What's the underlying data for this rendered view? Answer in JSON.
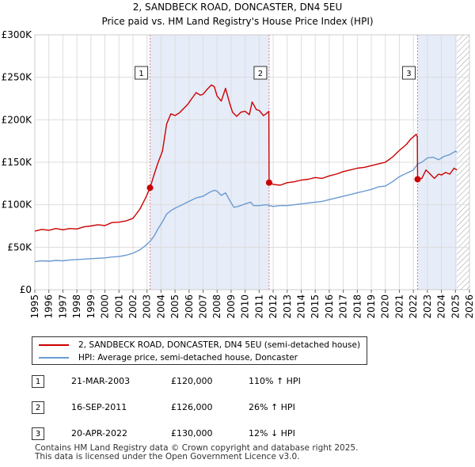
{
  "chart_data": {
    "type": "line",
    "title": "2, SANDBECK ROAD, DONCASTER, DN4 5EU",
    "subtitle": "Price paid vs. HM Land Registry's House Price Index (HPI)",
    "xlabel": "",
    "ylabel": "",
    "xlim": [
      1995,
      2026
    ],
    "ylim": [
      0,
      300000
    ],
    "y_ticks": [
      {
        "value": 0,
        "label": "£0"
      },
      {
        "value": 50000,
        "label": "£50K"
      },
      {
        "value": 100000,
        "label": "£100K"
      },
      {
        "value": 150000,
        "label": "£150K"
      },
      {
        "value": 200000,
        "label": "£200K"
      },
      {
        "value": 250000,
        "label": "£250K"
      },
      {
        "value": 300000,
        "label": "£300K"
      }
    ],
    "x_ticks": [
      "1995",
      "1996",
      "1997",
      "1998",
      "1999",
      "2000",
      "2001",
      "2002",
      "2003",
      "2004",
      "2005",
      "2006",
      "2007",
      "2008",
      "2009",
      "2010",
      "2011",
      "2012",
      "2013",
      "2014",
      "2015",
      "2016",
      "2017",
      "2018",
      "2019",
      "2020",
      "2021",
      "2022",
      "2023",
      "2024",
      "2025",
      "2026"
    ],
    "grid": true,
    "series": [
      {
        "name": "2, SANDBECK ROAD, DONCASTER, DN4 5EU (semi-detached house)",
        "color": "#cc0000",
        "points": [
          [
            1995.0,
            69000
          ],
          [
            1995.5,
            71000
          ],
          [
            1996.0,
            70000
          ],
          [
            1996.5,
            72000
          ],
          [
            1997.0,
            70500
          ],
          [
            1997.5,
            72000
          ],
          [
            1998.0,
            71500
          ],
          [
            1998.5,
            74000
          ],
          [
            1999.0,
            75000
          ],
          [
            1999.5,
            76500
          ],
          [
            2000.0,
            75500
          ],
          [
            2000.5,
            79000
          ],
          [
            2001.0,
            79500
          ],
          [
            2001.5,
            81000
          ],
          [
            2002.0,
            84000
          ],
          [
            2002.5,
            95000
          ],
          [
            2002.9,
            108000
          ],
          [
            2003.22,
            120000
          ],
          [
            2003.5,
            135000
          ],
          [
            2003.8,
            150000
          ],
          [
            2004.1,
            163000
          ],
          [
            2004.4,
            195000
          ],
          [
            2004.7,
            207000
          ],
          [
            2005.0,
            205000
          ],
          [
            2005.3,
            208000
          ],
          [
            2005.6,
            213000
          ],
          [
            2005.9,
            218000
          ],
          [
            2006.2,
            225000
          ],
          [
            2006.5,
            232000
          ],
          [
            2006.8,
            229000
          ],
          [
            2007.0,
            230000
          ],
          [
            2007.3,
            236000
          ],
          [
            2007.6,
            241000
          ],
          [
            2007.8,
            239000
          ],
          [
            2008.0,
            228000
          ],
          [
            2008.3,
            222000
          ],
          [
            2008.6,
            237000
          ],
          [
            2008.9,
            219000
          ],
          [
            2009.1,
            209000
          ],
          [
            2009.4,
            204000
          ],
          [
            2009.7,
            209000
          ],
          [
            2010.0,
            210000
          ],
          [
            2010.3,
            206000
          ],
          [
            2010.5,
            221000
          ],
          [
            2010.8,
            212000
          ],
          [
            2011.0,
            211000
          ],
          [
            2011.3,
            205000
          ],
          [
            2011.5,
            207000
          ],
          [
            2011.69,
            210000
          ],
          [
            2011.71,
            126000
          ],
          [
            2012.0,
            124000
          ],
          [
            2012.5,
            123000
          ],
          [
            2013.0,
            126000
          ],
          [
            2013.5,
            127000
          ],
          [
            2014.0,
            129000
          ],
          [
            2014.5,
            130000
          ],
          [
            2015.0,
            132000
          ],
          [
            2015.5,
            131000
          ],
          [
            2016.0,
            134000
          ],
          [
            2016.5,
            136000
          ],
          [
            2017.0,
            139000
          ],
          [
            2017.5,
            141000
          ],
          [
            2018.0,
            143000
          ],
          [
            2018.5,
            144000
          ],
          [
            2019.0,
            146000
          ],
          [
            2019.5,
            148000
          ],
          [
            2020.0,
            150000
          ],
          [
            2020.5,
            156000
          ],
          [
            2021.0,
            164000
          ],
          [
            2021.5,
            171000
          ],
          [
            2021.8,
            177000
          ],
          [
            2022.0,
            180000
          ],
          [
            2022.2,
            183000
          ],
          [
            2022.28,
            180000
          ],
          [
            2022.3,
            130000
          ],
          [
            2022.6,
            131000
          ],
          [
            2022.9,
            141000
          ],
          [
            2023.2,
            136000
          ],
          [
            2023.5,
            131000
          ],
          [
            2023.8,
            136000
          ],
          [
            2024.0,
            135000
          ],
          [
            2024.3,
            138000
          ],
          [
            2024.6,
            136000
          ],
          [
            2024.9,
            143000
          ],
          [
            2025.1,
            141000
          ]
        ]
      },
      {
        "name": "HPI: Average price, semi-detached house, Doncaster",
        "color": "#6a9bd1",
        "points": [
          [
            1995.0,
            33000
          ],
          [
            1995.5,
            34000
          ],
          [
            1996.0,
            33500
          ],
          [
            1996.5,
            34500
          ],
          [
            1997.0,
            34000
          ],
          [
            1997.5,
            35000
          ],
          [
            1998.0,
            35500
          ],
          [
            1998.5,
            36000
          ],
          [
            1999.0,
            36500
          ],
          [
            1999.5,
            37000
          ],
          [
            2000.0,
            37500
          ],
          [
            2000.5,
            38500
          ],
          [
            2001.0,
            39000
          ],
          [
            2001.5,
            40500
          ],
          [
            2002.0,
            43000
          ],
          [
            2002.5,
            47000
          ],
          [
            2002.9,
            52000
          ],
          [
            2003.22,
            57000
          ],
          [
            2003.5,
            63000
          ],
          [
            2003.8,
            72000
          ],
          [
            2004.1,
            80000
          ],
          [
            2004.4,
            89000
          ],
          [
            2004.7,
            93000
          ],
          [
            2005.0,
            96000
          ],
          [
            2005.5,
            100000
          ],
          [
            2006.0,
            104000
          ],
          [
            2006.5,
            108000
          ],
          [
            2007.0,
            110000
          ],
          [
            2007.5,
            115000
          ],
          [
            2007.8,
            117000
          ],
          [
            2008.0,
            116000
          ],
          [
            2008.3,
            111000
          ],
          [
            2008.6,
            114000
          ],
          [
            2008.9,
            105000
          ],
          [
            2009.2,
            97000
          ],
          [
            2009.5,
            98000
          ],
          [
            2010.0,
            101000
          ],
          [
            2010.4,
            103000
          ],
          [
            2010.6,
            99000
          ],
          [
            2011.0,
            99000
          ],
          [
            2011.5,
            100000
          ],
          [
            2012.0,
            98000
          ],
          [
            2012.5,
            99000
          ],
          [
            2013.0,
            99000
          ],
          [
            2013.5,
            100000
          ],
          [
            2014.0,
            101000
          ],
          [
            2014.5,
            102000
          ],
          [
            2015.0,
            103000
          ],
          [
            2015.5,
            104000
          ],
          [
            2016.0,
            106000
          ],
          [
            2016.5,
            108000
          ],
          [
            2017.0,
            110000
          ],
          [
            2017.5,
            112000
          ],
          [
            2018.0,
            114000
          ],
          [
            2018.5,
            116000
          ],
          [
            2019.0,
            118000
          ],
          [
            2019.5,
            121000
          ],
          [
            2020.0,
            122000
          ],
          [
            2020.5,
            127000
          ],
          [
            2021.0,
            133000
          ],
          [
            2021.5,
            137000
          ],
          [
            2022.0,
            141000
          ],
          [
            2022.3,
            148000
          ],
          [
            2022.6,
            150000
          ],
          [
            2023.0,
            155000
          ],
          [
            2023.4,
            156000
          ],
          [
            2023.8,
            153000
          ],
          [
            2024.2,
            157000
          ],
          [
            2024.6,
            159000
          ],
          [
            2025.0,
            163000
          ],
          [
            2025.1,
            162000
          ]
        ]
      }
    ],
    "annotations": [
      {
        "label": "1",
        "x": 2003.22,
        "y": 120000
      },
      {
        "label": "2",
        "x": 2011.71,
        "y": 126000
      },
      {
        "label": "3",
        "x": 2022.3,
        "y": 130000
      }
    ],
    "shaded_regions": [
      {
        "from": 2003.22,
        "to": 2011.71
      },
      {
        "from": 2022.3,
        "to": 2025.1
      }
    ],
    "hatched_region": {
      "from": 2025.1,
      "to": 2026
    }
  },
  "legend": {
    "items": [
      {
        "label": "2, SANDBECK ROAD, DONCASTER, DN4 5EU (semi-detached house)",
        "color": "#cc0000"
      },
      {
        "label": "HPI: Average price, semi-detached house, Doncaster",
        "color": "#6a9bd1"
      }
    ]
  },
  "sales": [
    {
      "num": "1",
      "date": "21-MAR-2003",
      "price": "£120,000",
      "pct": "110% ↑ HPI"
    },
    {
      "num": "2",
      "date": "16-SEP-2011",
      "price": "£126,000",
      "pct": "26% ↑ HPI"
    },
    {
      "num": "3",
      "date": "20-APR-2022",
      "price": "£130,000",
      "pct": "12% ↓ HPI"
    }
  ],
  "footer": {
    "line1": "Contains HM Land Registry data © Crown copyright and database right 2025.",
    "line2": "This data is licensed under the Open Government Licence v3.0."
  }
}
